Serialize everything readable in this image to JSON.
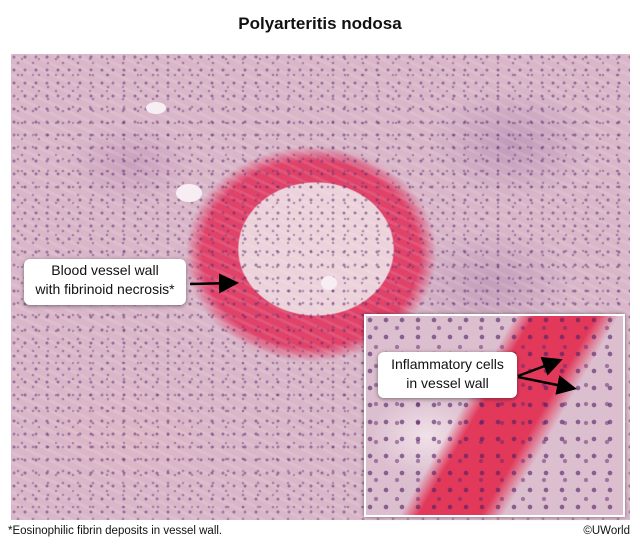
{
  "title": "Polyarteritis nodosa",
  "callouts": {
    "vessel_wall_line1": "Blood vessel wall",
    "vessel_wall_line2": "with fibrinoid necrosis*",
    "inflammatory_line1": "Inflammatory cells",
    "inflammatory_line2": "in vessel wall"
  },
  "footnote": "*Eosinophilic fibrin deposits in vessel wall.",
  "copyright": "©UWorld",
  "colors": {
    "fibrinoid_necrosis": "#e03c64",
    "background_tissue": "#d9b7c9",
    "nuclei": "#5a286e"
  }
}
